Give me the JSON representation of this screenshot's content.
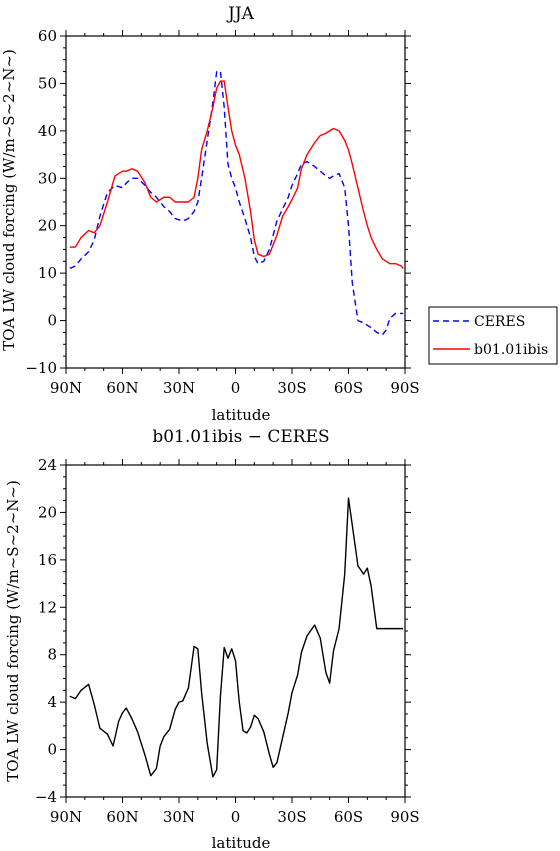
{
  "chart_data": [
    {
      "type": "line",
      "title": "JJA",
      "xlabel": "latitude",
      "ylabel": "TOA LW cloud forcing (W/m~S~2~N~)",
      "xlim": [
        90,
        -90
      ],
      "ylim": [
        -10,
        60
      ],
      "x_ticks": [
        90,
        60,
        30,
        0,
        -30,
        -60,
        -90
      ],
      "x_tick_labels": [
        "90N",
        "60N",
        "30N",
        "0",
        "30S",
        "60S",
        "90S"
      ],
      "y_ticks": [
        -10,
        0,
        10,
        20,
        30,
        40,
        50,
        60
      ],
      "y_tick_labels": [
        "−10",
        "0",
        "10",
        "20",
        "30",
        "40",
        "50",
        "60"
      ],
      "legend_position": "right",
      "series": [
        {
          "name": "CERES",
          "color": "#0000ff",
          "dash": "dashed",
          "x": [
            88,
            85,
            82,
            78,
            75,
            72,
            68,
            64,
            60,
            58,
            55,
            52,
            48,
            45,
            42,
            38,
            35,
            32,
            28,
            25,
            22,
            20,
            18,
            15,
            12,
            10,
            8,
            6,
            4,
            2,
            0,
            -2,
            -5,
            -8,
            -10,
            -12,
            -15,
            -18,
            -20,
            -22,
            -25,
            -28,
            -30,
            -33,
            -35,
            -38,
            -42,
            -45,
            -48,
            -50,
            -52,
            -55,
            -58,
            -60,
            -62,
            -65,
            -68,
            -70,
            -72,
            -75,
            -78,
            -80,
            -82,
            -85,
            -88,
            -89
          ],
          "y": [
            11,
            11.5,
            13,
            14.5,
            17,
            22,
            27,
            28.5,
            28,
            29,
            30,
            30,
            28.5,
            27,
            26,
            24,
            23,
            21.5,
            21,
            21.5,
            23,
            25,
            30,
            38,
            46,
            52.5,
            52.5,
            45,
            33,
            30,
            28,
            25,
            21.5,
            17.5,
            13.5,
            12,
            12.5,
            15,
            18,
            21,
            23.5,
            26,
            28.5,
            31,
            33,
            33.5,
            32.5,
            31.5,
            30.5,
            30,
            30.5,
            31,
            28,
            20,
            8,
            0,
            -0.5,
            -1,
            -1.5,
            -2.5,
            -3,
            -2,
            0.5,
            1.5,
            1.5,
            1.5
          ]
        },
        {
          "name": "b01.01ibis",
          "color": "#ff0000",
          "dash": "solid",
          "x": [
            88,
            85,
            82,
            78,
            75,
            72,
            68,
            64,
            60,
            58,
            55,
            52,
            48,
            45,
            42,
            38,
            35,
            32,
            28,
            25,
            22,
            20,
            18,
            15,
            12,
            10,
            8,
            6,
            4,
            2,
            0,
            -2,
            -5,
            -8,
            -10,
            -12,
            -15,
            -18,
            -20,
            -22,
            -25,
            -28,
            -30,
            -33,
            -35,
            -38,
            -42,
            -45,
            -48,
            -50,
            -52,
            -55,
            -58,
            -60,
            -62,
            -65,
            -68,
            -70,
            -72,
            -75,
            -78,
            -80,
            -82,
            -85,
            -88,
            -89
          ],
          "y": [
            15.5,
            15.5,
            17.5,
            19,
            18.5,
            20,
            25,
            30.5,
            31.5,
            31.5,
            32,
            31.5,
            29,
            26,
            25,
            26,
            26,
            25,
            25,
            25,
            26,
            30,
            36,
            40,
            45,
            49,
            50.5,
            50.5,
            45,
            40,
            37,
            35,
            30,
            23,
            17,
            14,
            13.5,
            14,
            16,
            18,
            22,
            24,
            25.5,
            28,
            32,
            35,
            37.5,
            39,
            39.5,
            40,
            40.5,
            40,
            38,
            36,
            33,
            28,
            23,
            20,
            17.5,
            15,
            13,
            12.5,
            12,
            12,
            11.5,
            11
          ]
        }
      ]
    },
    {
      "type": "line",
      "title": "b01.01ibis − CERES",
      "xlabel": "latitude",
      "ylabel": "TOA LW cloud forcing (W/m~S~2~N~)",
      "xlim": [
        90,
        -90
      ],
      "ylim": [
        -4,
        24
      ],
      "x_ticks": [
        90,
        60,
        30,
        0,
        -30,
        -60,
        -90
      ],
      "x_tick_labels": [
        "90N",
        "60N",
        "30N",
        "0",
        "30S",
        "60S",
        "90S"
      ],
      "y_ticks": [
        -4,
        0,
        4,
        8,
        12,
        16,
        20,
        24
      ],
      "y_tick_labels": [
        "−4",
        "0",
        "4",
        "8",
        "12",
        "16",
        "20",
        "24"
      ],
      "series": [
        {
          "color": "#000000",
          "dash": "solid",
          "x": [
            88,
            85,
            82,
            78,
            75,
            72,
            68,
            65,
            62,
            60,
            58,
            55,
            52,
            48,
            45,
            42,
            40,
            38,
            35,
            32,
            30,
            28,
            25,
            22,
            20,
            18,
            15,
            12,
            10,
            8,
            6,
            4,
            2,
            0,
            -2,
            -4,
            -6,
            -8,
            -10,
            -12,
            -15,
            -18,
            -20,
            -22,
            -25,
            -28,
            -30,
            -33,
            -35,
            -38,
            -42,
            -45,
            -48,
            -50,
            -52,
            -55,
            -58,
            -60,
            -63,
            -65,
            -68,
            -70,
            -72,
            -75,
            -78,
            -80,
            -82,
            -85,
            -88,
            -89
          ],
          "y": [
            4.5,
            4.3,
            5.0,
            5.5,
            3.8,
            1.8,
            1.3,
            0.3,
            2.4,
            3.1,
            3.5,
            2.6,
            1.5,
            -0.5,
            -2.2,
            -1.6,
            0.3,
            1.1,
            1.7,
            3.4,
            4.0,
            4.1,
            5.2,
            8.7,
            8.5,
            4.8,
            0.5,
            -2.3,
            -1.7,
            4.5,
            8.6,
            7.7,
            8.5,
            7.5,
            4.0,
            1.6,
            1.4,
            1.9,
            2.9,
            2.6,
            1.5,
            -0.4,
            -1.5,
            -1.1,
            1.0,
            3.1,
            4.8,
            6.3,
            8.2,
            9.6,
            10.5,
            9.4,
            6.5,
            5.6,
            8.3,
            10.2,
            14.8,
            21.2,
            17.8,
            15.5,
            14.8,
            15.3,
            13.8,
            10.2,
            10.2,
            10.2,
            10.2,
            10.2,
            10.2,
            10.2
          ]
        }
      ]
    }
  ]
}
